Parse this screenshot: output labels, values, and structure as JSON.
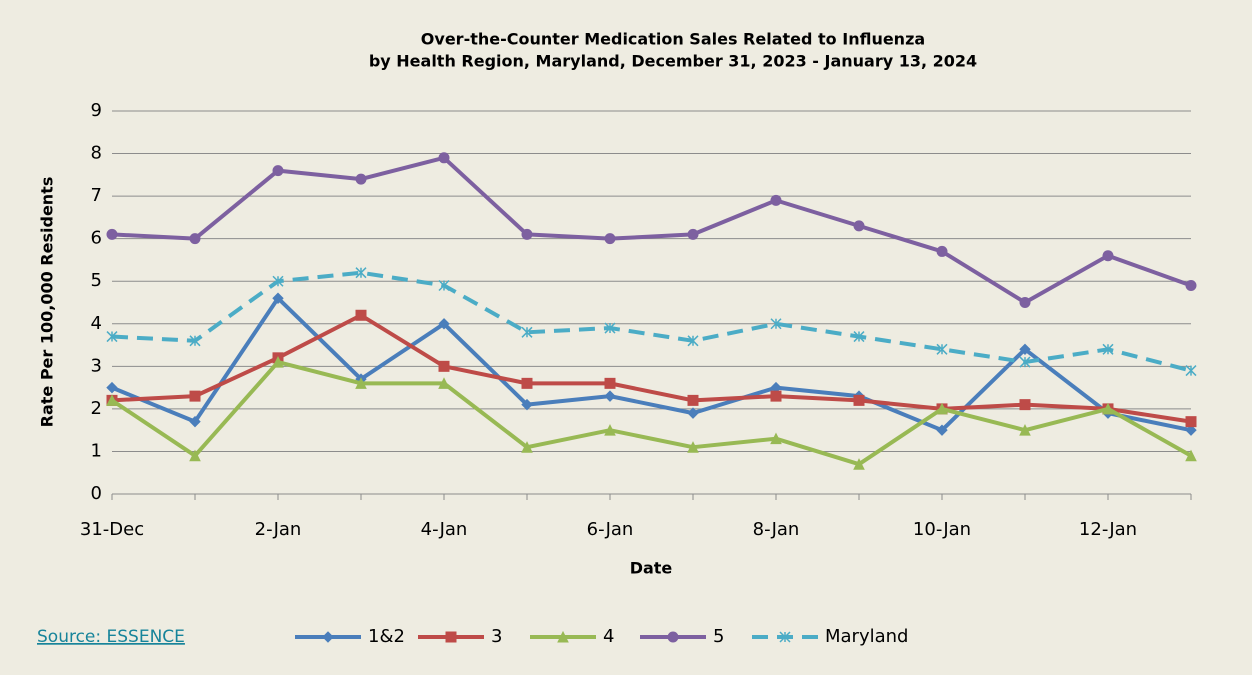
{
  "chart_data": {
    "type": "line",
    "title_lines": [
      "Over-the-Counter Medication Sales Related to Influenza",
      "by Health Region, Maryland, December 31, 2023 - January 13, 2024"
    ],
    "xlabel": "Date",
    "ylabel": "Rate Per 100,000 Residents",
    "categories": [
      "31-Dec",
      null,
      "2-Jan",
      null,
      "4-Jan",
      null,
      "6-Jan",
      null,
      "8-Jan",
      null,
      "10-Jan",
      null,
      "12-Jan",
      null
    ],
    "series": [
      {
        "name": "1&2",
        "color": "#4a7ebb",
        "marker": "diamond",
        "dash": false,
        "values": [
          2.5,
          1.7,
          4.6,
          2.7,
          4.0,
          2.1,
          2.3,
          1.9,
          2.5,
          2.3,
          1.5,
          3.4,
          1.9,
          1.5
        ]
      },
      {
        "name": "3",
        "color": "#be4b48",
        "marker": "square",
        "dash": false,
        "values": [
          2.2,
          2.3,
          3.2,
          4.2,
          3.0,
          2.6,
          2.6,
          2.2,
          2.3,
          2.2,
          2.0,
          2.1,
          2.0,
          1.7
        ]
      },
      {
        "name": "4",
        "color": "#98b954",
        "marker": "triangle",
        "dash": false,
        "values": [
          2.2,
          0.9,
          3.1,
          2.6,
          2.6,
          1.1,
          1.5,
          1.1,
          1.3,
          0.7,
          2.0,
          1.5,
          2.0,
          0.9
        ]
      },
      {
        "name": "5",
        "color": "#7d60a0",
        "marker": "circle",
        "dash": false,
        "values": [
          6.1,
          6.0,
          7.6,
          7.4,
          7.9,
          6.1,
          6.0,
          6.1,
          6.9,
          6.3,
          5.7,
          4.5,
          5.6,
          4.9
        ]
      },
      {
        "name": "Maryland",
        "color": "#4bacc6",
        "marker": "star",
        "dash": true,
        "values": [
          3.7,
          3.6,
          5.0,
          5.2,
          4.9,
          3.8,
          3.9,
          3.6,
          4.0,
          3.7,
          3.4,
          3.1,
          3.4,
          2.9
        ]
      }
    ],
    "ylim": [
      0,
      9
    ],
    "yticks": [
      0,
      1,
      2,
      3,
      4,
      5,
      6,
      7,
      8,
      9
    ],
    "grid": true,
    "legend": "bottom",
    "source": "Source: ESSENCE"
  }
}
